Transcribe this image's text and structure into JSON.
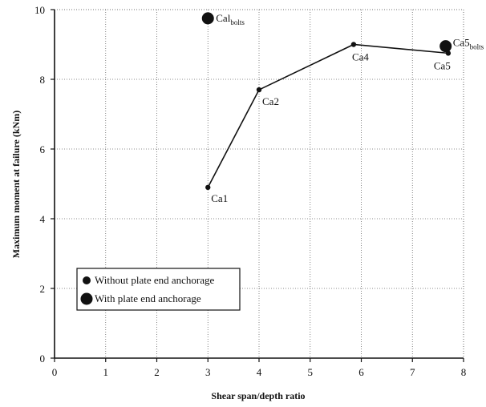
{
  "chart_data": {
    "type": "scatter",
    "xlabel": "Shear span/depth ratio",
    "ylabel": "Maximum moment at failure (kNm)",
    "xlim": [
      0,
      8
    ],
    "ylim": [
      0,
      10
    ],
    "xticks": [
      0,
      1,
      2,
      3,
      4,
      5,
      6,
      7,
      8
    ],
    "yticks": [
      0,
      2,
      4,
      6,
      8,
      10
    ],
    "grid": true,
    "legend_position": "bottom-left",
    "legend": [
      {
        "label": "Without plate end anchorage",
        "marker": "small-dot"
      },
      {
        "label": "With plate end anchorage",
        "marker": "large-dot"
      }
    ],
    "series": [
      {
        "name": "Without plate end anchorage",
        "style": "line-with-small-dots",
        "points": [
          {
            "x": 3.0,
            "y": 4.9,
            "label": "Ca1"
          },
          {
            "x": 4.0,
            "y": 7.7,
            "label": "Ca2"
          },
          {
            "x": 5.85,
            "y": 9.0,
            "label": "Ca4"
          },
          {
            "x": 7.7,
            "y": 8.75,
            "label": "Ca5"
          }
        ]
      },
      {
        "name": "With plate end anchorage",
        "style": "large-dots",
        "points": [
          {
            "x": 3.0,
            "y": 9.75,
            "label": "Cal",
            "label_sub": "bolts"
          },
          {
            "x": 7.65,
            "y": 8.95,
            "label": "Ca5",
            "label_sub": "bolts"
          }
        ]
      }
    ]
  }
}
